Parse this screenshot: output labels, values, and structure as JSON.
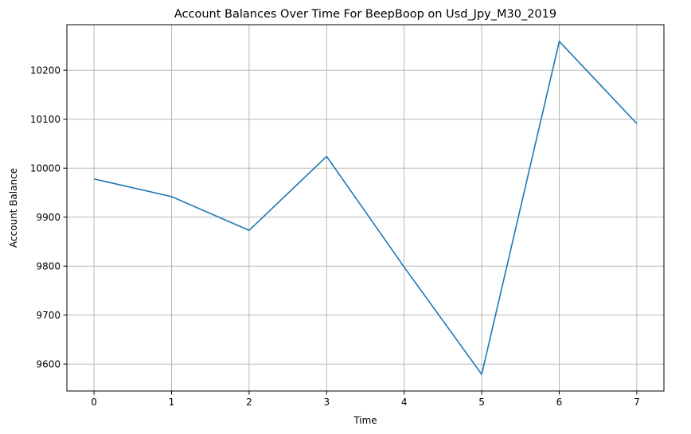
{
  "chart_data": {
    "type": "line",
    "title": "Account Balances Over Time For BeepBoop on Usd_Jpy_M30_2019",
    "xlabel": "Time",
    "ylabel": "Account Balance",
    "x": [
      0,
      1,
      2,
      3,
      4,
      5,
      6,
      7
    ],
    "series": [
      {
        "values": [
          9978,
          9942,
          9873,
          10024,
          9798,
          9579,
          10259,
          10091
        ],
        "color": "#1f77b4"
      }
    ],
    "xlim": [
      -0.35,
      7.35
    ],
    "ylim": [
      9545,
      10293
    ],
    "xticks": [
      0,
      1,
      2,
      3,
      4,
      5,
      6,
      7
    ],
    "yticks": [
      9600,
      9700,
      9800,
      9900,
      10000,
      10100,
      10200
    ],
    "grid": true,
    "legend": "none"
  }
}
